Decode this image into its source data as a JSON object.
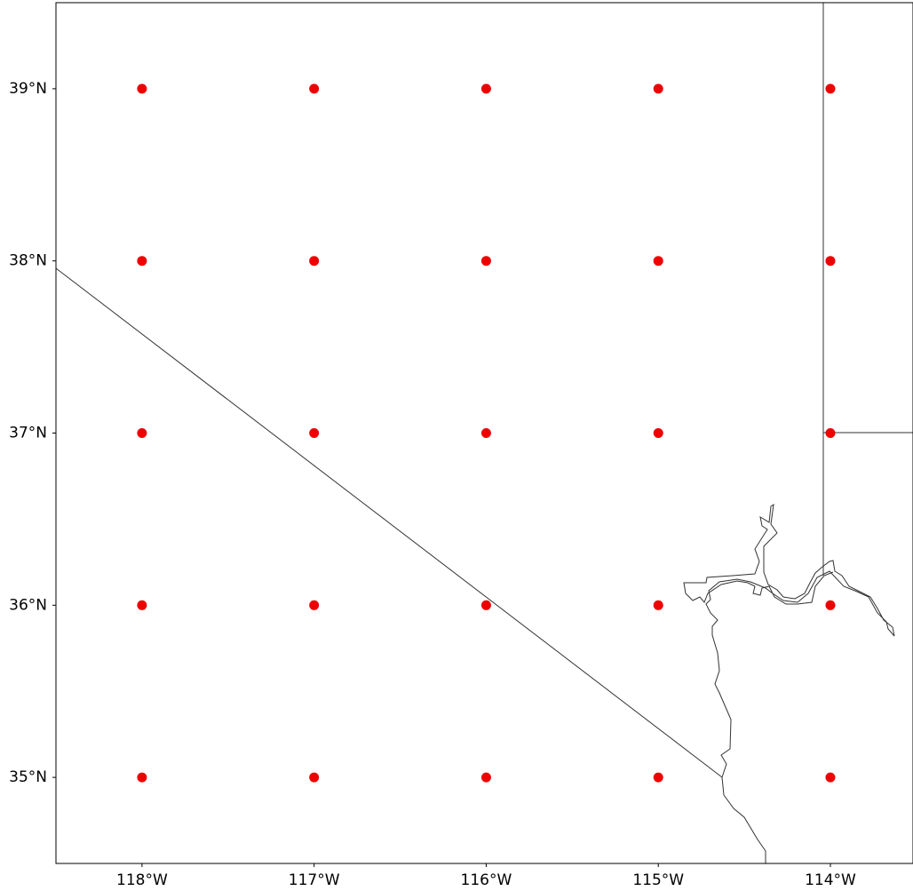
{
  "chart_data": {
    "type": "scatter",
    "color": "#ee0000",
    "x": [
      -118,
      -117,
      -116,
      -115,
      -114,
      -118,
      -117,
      -116,
      -115,
      -114,
      -118,
      -117,
      -116,
      -115,
      -114,
      -118,
      -117,
      -116,
      -115,
      -114,
      -118,
      -117,
      -116,
      -115,
      -114
    ],
    "values": [
      39,
      39,
      39,
      39,
      39,
      38,
      38,
      38,
      38,
      38,
      37,
      37,
      37,
      37,
      37,
      36,
      36,
      36,
      36,
      36,
      35,
      35,
      35,
      35,
      35
    ],
    "xlim": [
      -118.5,
      -113.52
    ],
    "ylim": [
      34.5,
      39.5
    ],
    "xticks": [
      {
        "value": -118,
        "label": "118°W"
      },
      {
        "value": -117,
        "label": "117°W"
      },
      {
        "value": -116,
        "label": "116°W"
      },
      {
        "value": -115,
        "label": "115°W"
      },
      {
        "value": -114,
        "label": "114°W"
      }
    ],
    "yticks": [
      {
        "value": 35,
        "label": "35°N"
      },
      {
        "value": 36,
        "label": "36°N"
      },
      {
        "value": 37,
        "label": "37°N"
      },
      {
        "value": 38,
        "label": "38°N"
      },
      {
        "value": 39,
        "label": "39°N"
      }
    ]
  }
}
